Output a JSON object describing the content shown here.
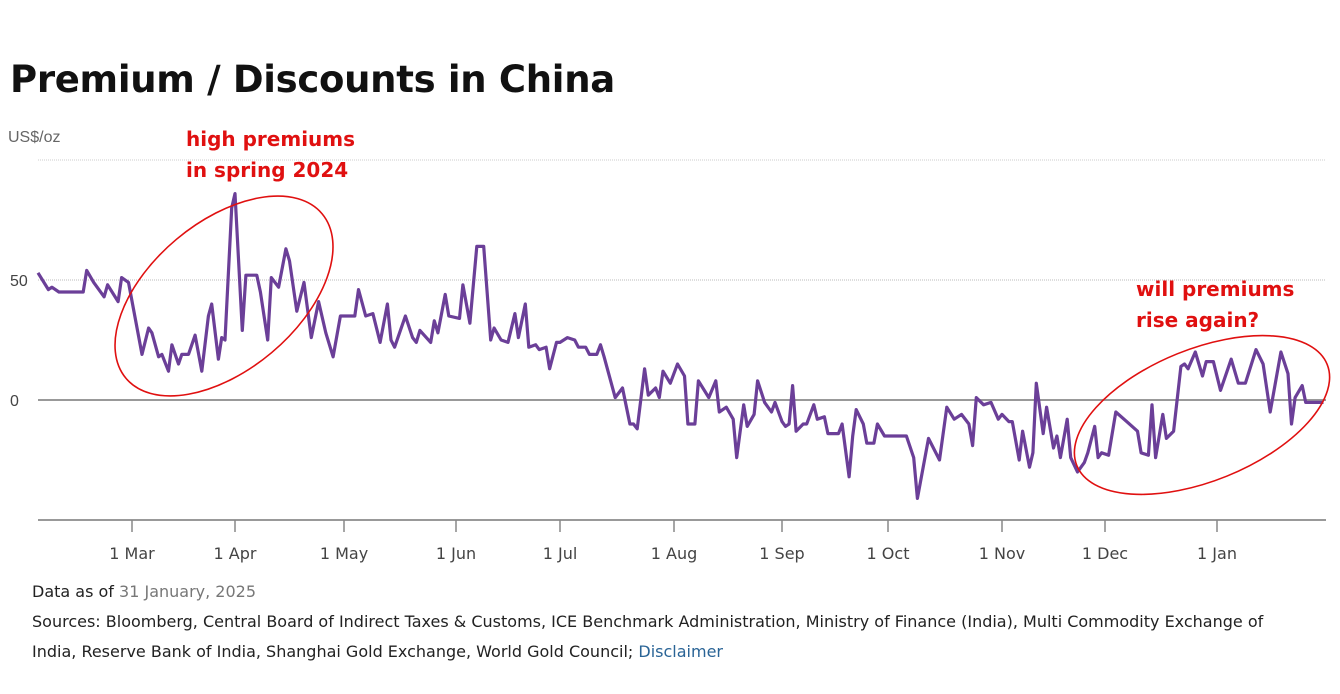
{
  "title": "Premium / Discounts in China",
  "footer": {
    "data_as_of_label": "Data as of",
    "data_as_of_date": "31 January, 2025",
    "sources_line1": "Sources: Bloomberg, Central Board of Indirect Taxes & Customs, ICE Benchmark Administration, Ministry of Finance (India), Multi Commodity Exchange of",
    "sources_line2": "India, Reserve Bank of India, Shanghai Gold Exchange, World Gold Council;",
    "disclaimer_link": "Disclaimer"
  },
  "annotations": {
    "spring_line1": "high premiums",
    "spring_line2": "in spring 2024",
    "rise_line1": "will premiums",
    "rise_line2": "rise again?",
    "color": "#e01010"
  },
  "chart_data": {
    "type": "line",
    "title": "Premium / Discounts in China",
    "ylabel": "US$/oz",
    "xlabel": "",
    "ylim": [
      -50,
      100
    ],
    "yticks": [
      0,
      50
    ],
    "ytick_labels": [
      "0",
      "50"
    ],
    "xtick_labels": [
      "1 Mar",
      "1 Apr",
      "1 May",
      "1 Jun",
      "1 Jul",
      "1 Aug",
      "1 Sep",
      "1 Oct",
      "1 Nov",
      "1 Dec",
      "1 Jan"
    ],
    "grid": "horizontal",
    "line_color": "#6b3f98",
    "series": [
      {
        "x": [
          "2024-02-03",
          "2024-02-06",
          "2024-02-07",
          "2024-02-09",
          "2024-02-16",
          "2024-02-17",
          "2024-02-19",
          "2024-02-22",
          "2024-02-23",
          "2024-02-26",
          "2024-02-27",
          "2024-02-29",
          "2024-03-04",
          "2024-03-06",
          "2024-03-07",
          "2024-03-09",
          "2024-03-10",
          "2024-03-12",
          "2024-03-13",
          "2024-03-15",
          "2024-03-16",
          "2024-03-18",
          "2024-03-20",
          "2024-03-22",
          "2024-03-24",
          "2024-03-25",
          "2024-03-27",
          "2024-03-28",
          "2024-03-29",
          "2024-03-31",
          "2024-04-01",
          "2024-04-03",
          "2024-04-04",
          "2024-04-07",
          "2024-04-08",
          "2024-04-10",
          "2024-04-11",
          "2024-04-13",
          "2024-04-15",
          "2024-04-16",
          "2024-04-18",
          "2024-04-20",
          "2024-04-22",
          "2024-04-24",
          "2024-04-26",
          "2024-04-28",
          "2024-04-30",
          "2024-05-04",
          "2024-05-05",
          "2024-05-07",
          "2024-05-09",
          "2024-05-11",
          "2024-05-13",
          "2024-05-14",
          "2024-05-15",
          "2024-05-18",
          "2024-05-20",
          "2024-05-21",
          "2024-05-22",
          "2024-05-25",
          "2024-05-26",
          "2024-05-27",
          "2024-05-29",
          "2024-05-30",
          "2024-06-02",
          "2024-06-03",
          "2024-06-05",
          "2024-06-07",
          "2024-06-09",
          "2024-06-11",
          "2024-06-12",
          "2024-06-14",
          "2024-06-16",
          "2024-06-18",
          "2024-06-19",
          "2024-06-21",
          "2024-06-22",
          "2024-06-24",
          "2024-06-25",
          "2024-06-27",
          "2024-06-28",
          "2024-06-30",
          "2024-07-01",
          "2024-07-03",
          "2024-07-05",
          "2024-07-06",
          "2024-07-08",
          "2024-07-09",
          "2024-07-11",
          "2024-07-12",
          "2024-07-13",
          "2024-07-16",
          "2024-07-18",
          "2024-07-20",
          "2024-07-21",
          "2024-07-22",
          "2024-07-24",
          "2024-07-25",
          "2024-07-27",
          "2024-07-28",
          "2024-07-29",
          "2024-07-31",
          "2024-08-02",
          "2024-08-04",
          "2024-08-05",
          "2024-08-07",
          "2024-08-08",
          "2024-08-11",
          "2024-08-13",
          "2024-08-14",
          "2024-08-16",
          "2024-08-18",
          "2024-08-19",
          "2024-08-21",
          "2024-08-22",
          "2024-08-24",
          "2024-08-25",
          "2024-08-27",
          "2024-08-29",
          "2024-08-30",
          "2024-09-01",
          "2024-09-02",
          "2024-09-03",
          "2024-09-04",
          "2024-09-05",
          "2024-09-07",
          "2024-09-08",
          "2024-09-10",
          "2024-09-11",
          "2024-09-13",
          "2024-09-14",
          "2024-09-17",
          "2024-09-18",
          "2024-09-20",
          "2024-09-21",
          "2024-09-22",
          "2024-09-24",
          "2024-09-25",
          "2024-09-27",
          "2024-09-28",
          "2024-09-30",
          "2024-10-06",
          "2024-10-08",
          "2024-10-09",
          "2024-10-12",
          "2024-10-15",
          "2024-10-17",
          "2024-10-19",
          "2024-10-21",
          "2024-10-23",
          "2024-10-24",
          "2024-10-25",
          "2024-10-27",
          "2024-10-29",
          "2024-10-31",
          "2024-11-01",
          "2024-11-03",
          "2024-11-04",
          "2024-11-06",
          "2024-11-07",
          "2024-11-09",
          "2024-11-10",
          "2024-11-11",
          "2024-11-13",
          "2024-11-14",
          "2024-11-16",
          "2024-11-17",
          "2024-11-18",
          "2024-11-20",
          "2024-11-21",
          "2024-11-23",
          "2024-11-25",
          "2024-11-26",
          "2024-11-28",
          "2024-11-29",
          "2024-11-30",
          "2024-12-02",
          "2024-12-04",
          "2024-12-07",
          "2024-12-10",
          "2024-12-11",
          "2024-12-13",
          "2024-12-14",
          "2024-12-15",
          "2024-12-17",
          "2024-12-18",
          "2024-12-20",
          "2024-12-22",
          "2024-12-23",
          "2024-12-24",
          "2024-12-26",
          "2024-12-28",
          "2024-12-29",
          "2024-12-31",
          "2025-01-02",
          "2025-01-05",
          "2025-01-07",
          "2025-01-09",
          "2025-01-12",
          "2025-01-14",
          "2025-01-16",
          "2025-01-19",
          "2025-01-21",
          "2025-01-22",
          "2025-01-23",
          "2025-01-25",
          "2025-01-26",
          "2025-01-31"
        ],
        "values": [
          53,
          46,
          47,
          45,
          45,
          54,
          49,
          43,
          48,
          41,
          51,
          49,
          19,
          30,
          28,
          18,
          19,
          12,
          23,
          15,
          19,
          19,
          27,
          12,
          35,
          40,
          17,
          26,
          25,
          80,
          86,
          29,
          52,
          52,
          45,
          25,
          51,
          47,
          63,
          58,
          37,
          49,
          26,
          41,
          28,
          18,
          35,
          35,
          46,
          35,
          36,
          24,
          40,
          25,
          22,
          35,
          26,
          24,
          29,
          24,
          33,
          28,
          44,
          35,
          34,
          48,
          32,
          64,
          64,
          25,
          30,
          25,
          24,
          36,
          26,
          40,
          22,
          23,
          21,
          22,
          13,
          24,
          24,
          26,
          25,
          22,
          22,
          19,
          19,
          23,
          18,
          1,
          5,
          -10,
          -10,
          -12,
          13,
          2,
          5,
          1,
          12,
          7,
          15,
          10,
          -10,
          -10,
          8,
          1,
          8,
          -5,
          -3,
          -8,
          -24,
          -2,
          -11,
          -6,
          8,
          -1,
          -5,
          -1,
          -9,
          -11,
          -10,
          6,
          -13,
          -10,
          -10,
          -2,
          -8,
          -7,
          -14,
          -14,
          -10,
          -32,
          -15,
          -4,
          -10,
          -18,
          -18,
          -10,
          -15,
          -15,
          -24,
          -41,
          -16,
          -25,
          -3,
          -8,
          -6,
          -10,
          -19,
          1,
          -2,
          -1,
          -8,
          -6,
          -9,
          -9,
          -25,
          -13,
          -28,
          -22,
          7,
          -14,
          -3,
          -20,
          -15,
          -24,
          -8,
          -24,
          -30,
          -26,
          -22,
          -11,
          -24,
          -22,
          -23,
          -5,
          -9,
          -13,
          -22,
          -23,
          -2,
          -24,
          -6,
          -16,
          -13,
          14,
          15,
          13,
          20,
          10,
          16,
          16,
          4,
          17,
          7,
          7,
          21,
          15,
          -5,
          20,
          11,
          -10,
          1,
          6,
          -1,
          -1
        ]
      }
    ]
  }
}
